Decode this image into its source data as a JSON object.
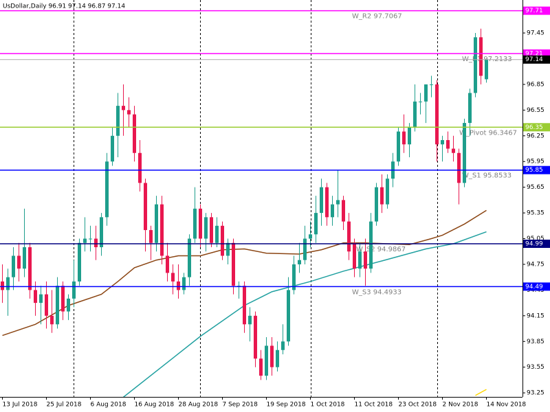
{
  "chart_data": {
    "type": "candlestick",
    "title": "UsDollar,Daily  96.91 97.14 96.87 97.14",
    "categories": [
      "13 Jul 2018",
      null,
      null,
      null,
      null,
      null,
      null,
      null,
      "25 Jul 2018",
      null,
      null,
      null,
      null,
      null,
      null,
      null,
      "6 Aug 2018",
      null,
      null,
      null,
      null,
      null,
      null,
      null,
      "16 Aug 2018",
      null,
      null,
      null,
      null,
      null,
      null,
      null,
      "28 Aug 2018",
      null,
      null,
      null,
      null,
      null,
      null,
      null,
      "7 Sep 2018",
      null,
      null,
      null,
      null,
      null,
      null,
      null,
      "19 Sep 2018",
      null,
      null,
      null,
      null,
      null,
      null,
      null,
      "1 Oct 2018",
      null,
      null,
      null,
      null,
      null,
      null,
      null,
      "11 Oct 2018",
      null,
      null,
      null,
      null,
      null,
      null,
      null,
      "23 Oct 2018",
      null,
      null,
      null,
      null,
      null,
      null,
      null,
      "2 Nov 2018",
      null,
      null,
      null,
      null,
      null,
      null,
      null,
      "14 Nov 2018"
    ],
    "open": [
      94.55,
      94.45,
      94.6,
      94.85,
      94.7,
      94.95,
      94.45,
      94.3,
      94.4,
      94.15,
      94.05,
      94.5,
      94.2,
      94.35,
      94.55,
      95.0,
      95.05,
      95.05,
      94.95,
      95.3,
      95.95,
      96.25,
      96.6,
      96.55,
      96.5,
      96.05,
      95.7,
      95.15,
      95.0,
      95.45,
      94.85,
      94.65,
      94.55,
      94.45,
      94.6,
      95.05,
      95.4,
      95.05,
      95.3,
      95.0,
      95.2,
      94.85,
      95.0,
      94.5,
      94.5,
      94.05,
      94.15,
      93.65,
      93.45,
      93.8,
      93.55,
      93.75,
      93.85,
      94.45,
      94.75,
      94.8,
      95.05,
      95.1,
      95.35,
      95.65,
      95.3,
      95.45,
      95.5,
      95.25,
      95.0,
      94.7,
      94.9,
      94.7,
      95.25,
      95.65,
      95.45,
      95.75,
      95.95,
      96.3,
      96.15,
      96.35,
      96.65,
      96.65,
      96.85,
      96.85,
      96.15,
      96.2,
      96.1,
      96.05,
      95.7,
      96.4,
      96.75,
      97.4,
      96.91
    ],
    "high": [
      94.75,
      94.7,
      94.95,
      95.0,
      95.4,
      95.0,
      94.55,
      94.5,
      94.55,
      94.45,
      94.6,
      94.55,
      94.4,
      94.8,
      95.05,
      95.3,
      95.2,
      95.2,
      95.35,
      96.05,
      96.35,
      96.75,
      96.85,
      96.7,
      96.6,
      96.2,
      95.75,
      95.2,
      95.55,
      95.55,
      95.0,
      94.75,
      94.75,
      94.65,
      95.1,
      95.65,
      95.45,
      95.35,
      95.35,
      95.3,
      95.25,
      95.05,
      95.05,
      94.55,
      94.55,
      94.25,
      94.2,
      93.75,
      93.9,
      93.9,
      93.85,
      94.05,
      94.6,
      94.85,
      95.0,
      95.2,
      95.25,
      95.55,
      95.75,
      95.7,
      95.55,
      95.85,
      95.55,
      95.35,
      95.05,
      95.0,
      95.05,
      95.35,
      95.7,
      95.8,
      95.8,
      96.05,
      96.35,
      96.5,
      96.4,
      96.85,
      96.75,
      96.85,
      96.95,
      96.9,
      96.25,
      96.3,
      96.25,
      96.1,
      96.45,
      96.8,
      97.45,
      97.5,
      97.14
    ],
    "low": [
      94.3,
      94.15,
      94.45,
      94.55,
      94.6,
      94.35,
      94.15,
      94.05,
      94.0,
      93.95,
      94.0,
      94.1,
      94.1,
      94.25,
      94.5,
      94.9,
      94.9,
      94.8,
      94.85,
      95.2,
      95.9,
      96.0,
      96.25,
      96.35,
      95.95,
      95.6,
      94.9,
      94.8,
      94.9,
      94.75,
      94.55,
      94.4,
      94.35,
      94.4,
      94.5,
      95.0,
      94.95,
      94.9,
      94.95,
      94.95,
      94.8,
      94.75,
      94.4,
      94.35,
      93.95,
      93.85,
      93.55,
      93.4,
      93.4,
      93.45,
      93.5,
      93.7,
      93.8,
      94.4,
      94.65,
      94.75,
      94.95,
      95.0,
      95.2,
      95.2,
      95.2,
      95.3,
      95.15,
      94.8,
      94.6,
      94.6,
      94.5,
      94.65,
      95.2,
      95.35,
      95.4,
      95.65,
      95.9,
      96.05,
      96.0,
      96.3,
      96.5,
      96.4,
      96.7,
      95.95,
      95.95,
      96.05,
      95.95,
      95.45,
      95.65,
      96.25,
      96.7,
      96.85,
      96.87
    ],
    "close": [
      94.45,
      94.6,
      94.85,
      94.7,
      94.95,
      94.45,
      94.3,
      94.4,
      94.15,
      94.05,
      94.5,
      94.2,
      94.35,
      94.55,
      95.0,
      95.05,
      95.05,
      94.95,
      95.3,
      95.95,
      96.25,
      96.6,
      96.55,
      96.5,
      96.05,
      95.7,
      95.15,
      95.0,
      95.45,
      94.85,
      94.65,
      94.55,
      94.45,
      94.6,
      95.05,
      95.4,
      95.05,
      95.3,
      95.0,
      95.2,
      94.85,
      95.0,
      94.5,
      94.5,
      94.05,
      94.15,
      93.65,
      93.45,
      93.8,
      93.55,
      93.75,
      93.85,
      94.45,
      94.75,
      94.8,
      95.05,
      95.1,
      95.35,
      95.65,
      95.3,
      95.45,
      95.5,
      95.25,
      94.9,
      94.7,
      94.9,
      94.7,
      95.25,
      95.65,
      95.45,
      95.75,
      95.95,
      96.3,
      96.15,
      96.35,
      96.65,
      96.65,
      96.85,
      96.85,
      96.15,
      96.2,
      96.1,
      96.05,
      95.7,
      96.4,
      96.75,
      97.4,
      96.95,
      97.14
    ],
    "up_color": "#1e9e8c",
    "down_color": "#e8174f",
    "overlays": [
      {
        "color": "#8b4513",
        "x": [
          0,
          6,
          12,
          18,
          21,
          24,
          28,
          32,
          36,
          40,
          44,
          48,
          54,
          58,
          62,
          66,
          70,
          74,
          78,
          80,
          84,
          88
        ],
        "values": [
          93.92,
          94.05,
          94.27,
          94.4,
          94.55,
          94.71,
          94.8,
          94.85,
          94.85,
          94.92,
          94.93,
          94.88,
          94.87,
          94.92,
          95.0,
          95.0,
          94.99,
          94.98,
          95.05,
          95.09,
          95.22,
          95.38
        ]
      },
      {
        "color": "#20a0a0",
        "x": [
          22,
          36,
          44,
          49,
          56,
          62,
          69,
          77,
          82,
          88
        ],
        "values": [
          93.2,
          93.91,
          94.27,
          94.43,
          94.55,
          94.67,
          94.79,
          94.93,
          94.99,
          95.13
        ]
      },
      {
        "color": "#ffd700",
        "x": [
          86,
          88
        ],
        "values": [
          93.22,
          93.29
        ]
      }
    ],
    "levels": [
      {
        "value": 97.71,
        "color": "#ff00ff",
        "note": "W_R2 97.7067"
      },
      {
        "value": 97.21,
        "color": "#ff00ff",
        "note": "W_R1 97.2133"
      },
      {
        "value": 96.35,
        "color": "#9acd32",
        "note": "W_Pivot 96.3467"
      },
      {
        "value": 95.85,
        "color": "#0000ff",
        "note": "W_S1 95.8533"
      },
      {
        "value": 94.99,
        "color": "#000080",
        "note": "W_S2 94.9867"
      },
      {
        "value": 94.49,
        "color": "#0000ff",
        "note": "W_S3 94.4933"
      }
    ],
    "last": {
      "value": 97.14,
      "color": "#a9a9a9"
    },
    "ylim": [
      93.203,
      97.835
    ],
    "yticks": [
      93.25,
      93.55,
      93.85,
      94.15,
      94.45,
      94.75,
      95.05,
      95.35,
      95.65,
      95.95,
      96.25,
      96.55,
      96.85,
      97.45
    ]
  }
}
